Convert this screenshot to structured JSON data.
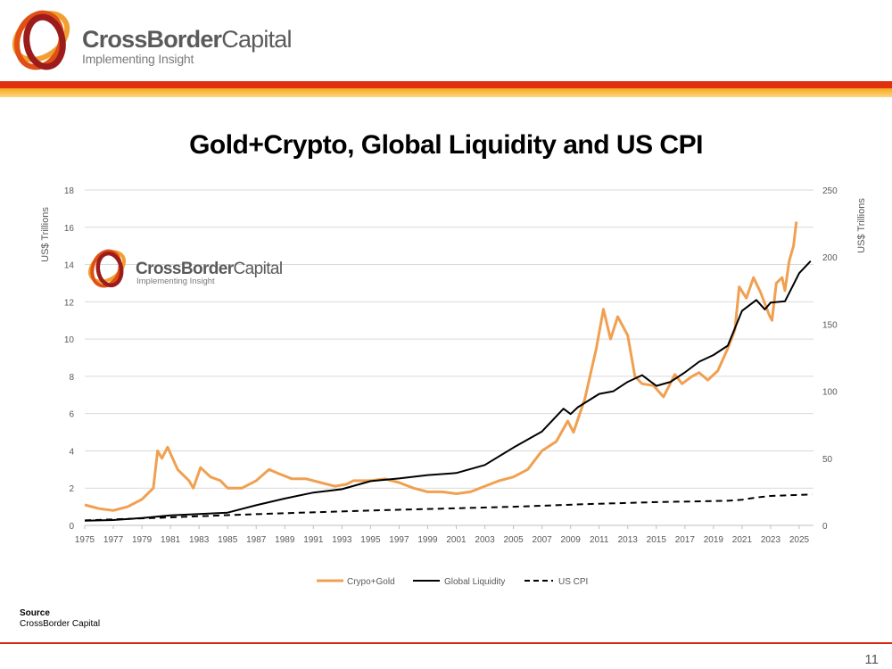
{
  "header": {
    "brand_name": "CrossBorder",
    "brand_name_cap": "Capital",
    "tagline": "Implementing Insight"
  },
  "title": "Gold+Crypto, Global Liquidity and US CPI",
  "watermark": {
    "brand_name": "CrossBorder",
    "brand_name_cap": "Capital",
    "tagline": "Implementing Insight"
  },
  "colors": {
    "crypto_gold": "#f0a050",
    "global_liquidity": "#000000",
    "us_cpi": "#000000",
    "accent_red": "#e03010",
    "accent_orange": "#f7a81b"
  },
  "source": {
    "label": "Source",
    "text": "CrossBorder Capital"
  },
  "page_number": "11",
  "chart_data": {
    "type": "line",
    "y_left": {
      "label": "US$ Trillions",
      "lim": [
        0,
        18
      ],
      "ticks": [
        "0",
        "2",
        "4",
        "6",
        "8",
        "10",
        "12",
        "14",
        "16",
        "18"
      ]
    },
    "y_right": {
      "label": "US$ Trillions",
      "lim": [
        0,
        250
      ],
      "ticks": [
        "0",
        "50",
        "100",
        "150",
        "200",
        "250"
      ]
    },
    "x_lim": [
      1975,
      2026
    ],
    "x_ticks": [
      "1975",
      "1977",
      "1979",
      "1981",
      "1983",
      "1985",
      "1987",
      "1989",
      "1991",
      "1993",
      "1995",
      "1997",
      "1999",
      "2001",
      "2003",
      "2005",
      "2007",
      "2009",
      "2011",
      "2013",
      "2015",
      "2017",
      "2019",
      "2021",
      "2023",
      "2025"
    ],
    "grid": true,
    "legend_position": "bottom",
    "series": [
      {
        "name": "Crypo+Gold",
        "axis": "left",
        "style": "solid",
        "points": [
          [
            1975.0,
            1.1
          ],
          [
            1976.0,
            0.9
          ],
          [
            1977.0,
            0.8
          ],
          [
            1978.0,
            1.0
          ],
          [
            1979.0,
            1.4
          ],
          [
            1979.8,
            2.0
          ],
          [
            1980.1,
            4.0
          ],
          [
            1980.4,
            3.6
          ],
          [
            1980.8,
            4.2
          ],
          [
            1981.5,
            3.0
          ],
          [
            1982.3,
            2.4
          ],
          [
            1982.6,
            2.0
          ],
          [
            1983.1,
            3.1
          ],
          [
            1983.8,
            2.6
          ],
          [
            1984.5,
            2.4
          ],
          [
            1985.0,
            2.0
          ],
          [
            1986.0,
            2.0
          ],
          [
            1987.0,
            2.4
          ],
          [
            1987.9,
            3.0
          ],
          [
            1988.5,
            2.8
          ],
          [
            1989.5,
            2.5
          ],
          [
            1990.5,
            2.5
          ],
          [
            1991.5,
            2.3
          ],
          [
            1992.5,
            2.1
          ],
          [
            1993.3,
            2.2
          ],
          [
            1993.8,
            2.4
          ],
          [
            1995.0,
            2.4
          ],
          [
            1996.0,
            2.5
          ],
          [
            1997.0,
            2.3
          ],
          [
            1998.0,
            2.0
          ],
          [
            1999.0,
            1.8
          ],
          [
            2000.0,
            1.8
          ],
          [
            2001.0,
            1.7
          ],
          [
            2002.0,
            1.8
          ],
          [
            2003.0,
            2.1
          ],
          [
            2004.0,
            2.4
          ],
          [
            2005.0,
            2.6
          ],
          [
            2006.0,
            3.0
          ],
          [
            2007.0,
            4.0
          ],
          [
            2008.0,
            4.5
          ],
          [
            2008.8,
            5.6
          ],
          [
            2009.2,
            5.0
          ],
          [
            2010.0,
            6.8
          ],
          [
            2010.8,
            9.5
          ],
          [
            2011.3,
            11.6
          ],
          [
            2011.8,
            10.0
          ],
          [
            2012.3,
            11.2
          ],
          [
            2013.0,
            10.2
          ],
          [
            2013.5,
            8.0
          ],
          [
            2014.0,
            7.6
          ],
          [
            2014.8,
            7.5
          ],
          [
            2015.5,
            6.9
          ],
          [
            2016.3,
            8.1
          ],
          [
            2016.8,
            7.6
          ],
          [
            2017.5,
            8.0
          ],
          [
            2018.0,
            8.2
          ],
          [
            2018.6,
            7.8
          ],
          [
            2019.3,
            8.3
          ],
          [
            2020.0,
            9.5
          ],
          [
            2020.5,
            10.5
          ],
          [
            2020.8,
            12.8
          ],
          [
            2021.3,
            12.2
          ],
          [
            2021.8,
            13.3
          ],
          [
            2022.3,
            12.5
          ],
          [
            2022.9,
            11.3
          ],
          [
            2023.1,
            11.0
          ],
          [
            2023.4,
            13.0
          ],
          [
            2023.8,
            13.3
          ],
          [
            2024.0,
            12.6
          ],
          [
            2024.3,
            14.2
          ],
          [
            2024.6,
            15.0
          ],
          [
            2024.8,
            16.3
          ]
        ]
      },
      {
        "name": "Global Liquidity",
        "axis": "right",
        "style": "solid",
        "points": [
          [
            1975.0,
            3.5
          ],
          [
            1977.0,
            4.0
          ],
          [
            1979.0,
            5.5
          ],
          [
            1981.0,
            7.5
          ],
          [
            1983.0,
            8.5
          ],
          [
            1985.0,
            9.5
          ],
          [
            1987.0,
            15.0
          ],
          [
            1989.0,
            20.0
          ],
          [
            1991.0,
            24.5
          ],
          [
            1993.0,
            27.0
          ],
          [
            1995.0,
            33.0
          ],
          [
            1997.0,
            35.0
          ],
          [
            1999.0,
            37.5
          ],
          [
            2001.0,
            39.0
          ],
          [
            2003.0,
            45.0
          ],
          [
            2005.0,
            58.0
          ],
          [
            2007.0,
            70.0
          ],
          [
            2008.5,
            87.0
          ],
          [
            2009.0,
            83.0
          ],
          [
            2009.5,
            88.0
          ],
          [
            2011.0,
            98.0
          ],
          [
            2012.0,
            100.0
          ],
          [
            2013.0,
            107.0
          ],
          [
            2014.0,
            112.0
          ],
          [
            2015.0,
            104.0
          ],
          [
            2016.0,
            107.0
          ],
          [
            2017.0,
            114.0
          ],
          [
            2018.0,
            122.0
          ],
          [
            2019.0,
            127.0
          ],
          [
            2020.0,
            134.0
          ],
          [
            2021.0,
            160.0
          ],
          [
            2022.0,
            168.0
          ],
          [
            2022.6,
            161.0
          ],
          [
            2023.0,
            166.0
          ],
          [
            2024.0,
            167.0
          ],
          [
            2025.0,
            188.0
          ],
          [
            2025.8,
            197.0
          ]
        ]
      },
      {
        "name": "US CPI",
        "axis": "left",
        "style": "dashed",
        "points": [
          [
            1975.0,
            0.27
          ],
          [
            1980.0,
            0.4
          ],
          [
            1985.0,
            0.55
          ],
          [
            1990.0,
            0.68
          ],
          [
            1995.0,
            0.8
          ],
          [
            2000.0,
            0.9
          ],
          [
            2005.0,
            1.0
          ],
          [
            2010.0,
            1.14
          ],
          [
            2015.0,
            1.25
          ],
          [
            2020.0,
            1.32
          ],
          [
            2021.0,
            1.38
          ],
          [
            2022.0,
            1.5
          ],
          [
            2023.0,
            1.58
          ],
          [
            2025.9,
            1.66
          ]
        ]
      }
    ]
  }
}
